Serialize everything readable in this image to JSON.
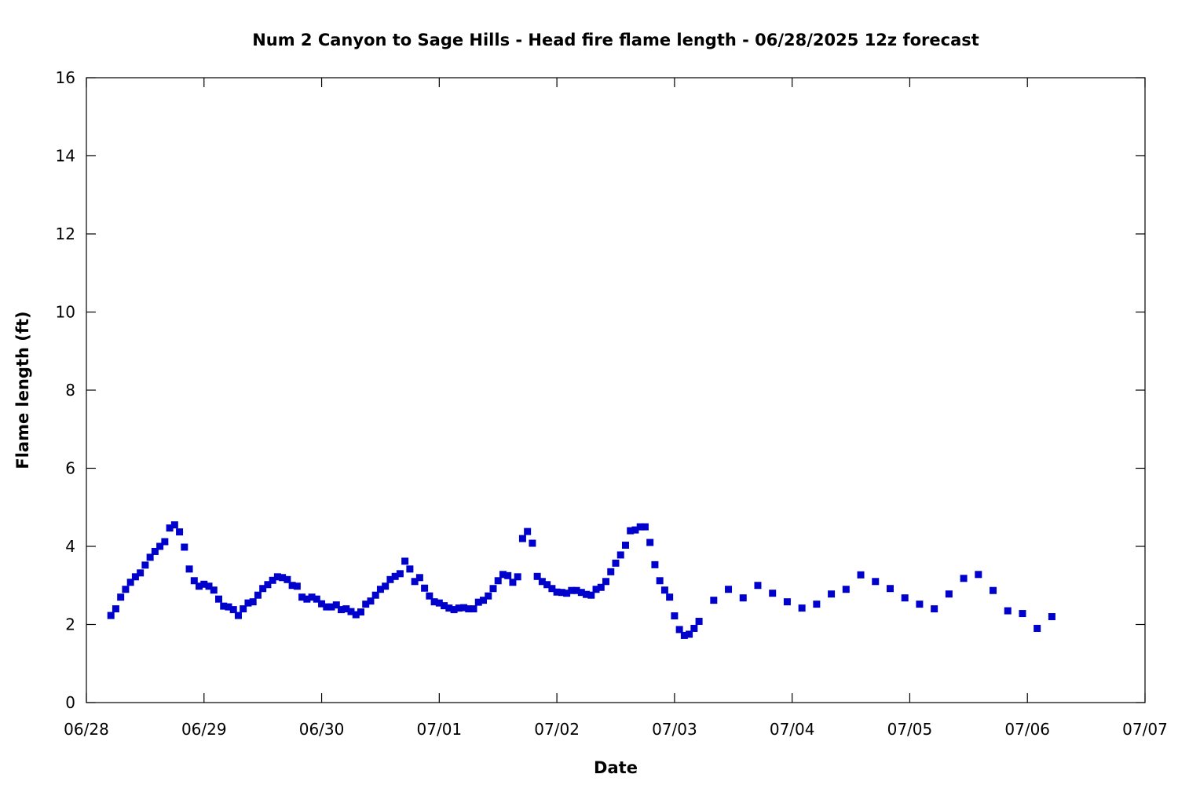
{
  "chart_data": {
    "type": "scatter",
    "title": "Num 2 Canyon to Sage Hills - Head fire flame length - 06/28/2025 12z forecast",
    "xlabel": "Date",
    "ylabel": "Flame length (ft)",
    "x_ticks": [
      "06/28",
      "06/29",
      "06/30",
      "07/01",
      "07/02",
      "07/03",
      "07/04",
      "07/05",
      "07/06",
      "07/07"
    ],
    "y_ticks": [
      "0",
      "2",
      "4",
      "6",
      "8",
      "10",
      "12",
      "14",
      "16"
    ],
    "xlim": [
      "06/28 00:00",
      "07/07 00:00"
    ],
    "ylim": [
      0,
      16
    ],
    "grid": false,
    "marker_color": "#0000cc",
    "series": [
      {
        "points": [
          [
            "06/28 05:00",
            2.23
          ],
          [
            "06/28 06:00",
            2.4
          ],
          [
            "06/28 07:00",
            2.7
          ],
          [
            "06/28 08:00",
            2.9
          ],
          [
            "06/28 09:00",
            3.08
          ],
          [
            "06/28 10:00",
            3.22
          ],
          [
            "06/28 11:00",
            3.32
          ],
          [
            "06/28 12:00",
            3.52
          ],
          [
            "06/28 13:00",
            3.72
          ],
          [
            "06/28 14:00",
            3.87
          ],
          [
            "06/28 15:00",
            4.0
          ],
          [
            "06/28 16:00",
            4.12
          ],
          [
            "06/28 17:00",
            4.47
          ],
          [
            "06/28 18:00",
            4.55
          ],
          [
            "06/28 19:00",
            4.37
          ],
          [
            "06/28 20:00",
            3.98
          ],
          [
            "06/28 21:00",
            3.42
          ],
          [
            "06/28 22:00",
            3.12
          ],
          [
            "06/28 23:00",
            2.98
          ],
          [
            "06/29 00:00",
            3.03
          ],
          [
            "06/29 01:00",
            2.98
          ],
          [
            "06/29 02:00",
            2.88
          ],
          [
            "06/29 03:00",
            2.65
          ],
          [
            "06/29 04:00",
            2.47
          ],
          [
            "06/29 05:00",
            2.45
          ],
          [
            "06/29 06:00",
            2.38
          ],
          [
            "06/29 07:00",
            2.23
          ],
          [
            "06/29 08:00",
            2.4
          ],
          [
            "06/29 09:00",
            2.55
          ],
          [
            "06/29 10:00",
            2.58
          ],
          [
            "06/29 11:00",
            2.75
          ],
          [
            "06/29 12:00",
            2.92
          ],
          [
            "06/29 13:00",
            3.02
          ],
          [
            "06/29 14:00",
            3.13
          ],
          [
            "06/29 15:00",
            3.22
          ],
          [
            "06/29 16:00",
            3.2
          ],
          [
            "06/29 17:00",
            3.15
          ],
          [
            "06/29 18:00",
            3.0
          ],
          [
            "06/29 19:00",
            2.98
          ],
          [
            "06/29 20:00",
            2.7
          ],
          [
            "06/29 21:00",
            2.65
          ],
          [
            "06/29 22:00",
            2.7
          ],
          [
            "06/29 23:00",
            2.65
          ],
          [
            "06/30 00:00",
            2.53
          ],
          [
            "06/30 01:00",
            2.45
          ],
          [
            "06/30 02:00",
            2.45
          ],
          [
            "06/30 03:00",
            2.5
          ],
          [
            "06/30 04:00",
            2.38
          ],
          [
            "06/30 05:00",
            2.4
          ],
          [
            "06/30 06:00",
            2.33
          ],
          [
            "06/30 07:00",
            2.25
          ],
          [
            "06/30 08:00",
            2.32
          ],
          [
            "06/30 09:00",
            2.52
          ],
          [
            "06/30 10:00",
            2.6
          ],
          [
            "06/30 11:00",
            2.75
          ],
          [
            "06/30 12:00",
            2.9
          ],
          [
            "06/30 13:00",
            2.98
          ],
          [
            "06/30 14:00",
            3.15
          ],
          [
            "06/30 15:00",
            3.23
          ],
          [
            "06/30 16:00",
            3.3
          ],
          [
            "06/30 17:00",
            3.62
          ],
          [
            "06/30 18:00",
            3.42
          ],
          [
            "06/30 19:00",
            3.1
          ],
          [
            "06/30 20:00",
            3.2
          ],
          [
            "06/30 21:00",
            2.93
          ],
          [
            "06/30 22:00",
            2.73
          ],
          [
            "06/30 23:00",
            2.58
          ],
          [
            "07/01 00:00",
            2.55
          ],
          [
            "07/01 01:00",
            2.48
          ],
          [
            "07/01 02:00",
            2.42
          ],
          [
            "07/01 03:00",
            2.38
          ],
          [
            "07/01 04:00",
            2.42
          ],
          [
            "07/01 05:00",
            2.43
          ],
          [
            "07/01 06:00",
            2.4
          ],
          [
            "07/01 07:00",
            2.4
          ],
          [
            "07/01 08:00",
            2.57
          ],
          [
            "07/01 09:00",
            2.62
          ],
          [
            "07/01 10:00",
            2.73
          ],
          [
            "07/01 11:00",
            2.92
          ],
          [
            "07/01 12:00",
            3.12
          ],
          [
            "07/01 13:00",
            3.28
          ],
          [
            "07/01 14:00",
            3.25
          ],
          [
            "07/01 15:00",
            3.08
          ],
          [
            "07/01 16:00",
            3.22
          ],
          [
            "07/01 17:00",
            4.2
          ],
          [
            "07/01 18:00",
            4.38
          ],
          [
            "07/01 19:00",
            4.08
          ],
          [
            "07/01 20:00",
            3.23
          ],
          [
            "07/01 21:00",
            3.1
          ],
          [
            "07/01 22:00",
            3.02
          ],
          [
            "07/01 23:00",
            2.92
          ],
          [
            "07/02 00:00",
            2.83
          ],
          [
            "07/02 01:00",
            2.82
          ],
          [
            "07/02 02:00",
            2.8
          ],
          [
            "07/02 03:00",
            2.87
          ],
          [
            "07/02 04:00",
            2.87
          ],
          [
            "07/02 05:00",
            2.82
          ],
          [
            "07/02 06:00",
            2.77
          ],
          [
            "07/02 07:00",
            2.75
          ],
          [
            "07/02 08:00",
            2.9
          ],
          [
            "07/02 09:00",
            2.95
          ],
          [
            "07/02 10:00",
            3.1
          ],
          [
            "07/02 11:00",
            3.35
          ],
          [
            "07/02 12:00",
            3.57
          ],
          [
            "07/02 13:00",
            3.78
          ],
          [
            "07/02 14:00",
            4.03
          ],
          [
            "07/02 15:00",
            4.4
          ],
          [
            "07/02 16:00",
            4.42
          ],
          [
            "07/02 17:00",
            4.5
          ],
          [
            "07/02 18:00",
            4.5
          ],
          [
            "07/02 19:00",
            4.1
          ],
          [
            "07/02 20:00",
            3.53
          ],
          [
            "07/02 21:00",
            3.12
          ],
          [
            "07/02 22:00",
            2.88
          ],
          [
            "07/02 23:00",
            2.7
          ],
          [
            "07/03 00:00",
            2.22
          ],
          [
            "07/03 01:00",
            1.87
          ],
          [
            "07/03 02:00",
            1.72
          ],
          [
            "07/03 03:00",
            1.75
          ],
          [
            "07/03 04:00",
            1.9
          ],
          [
            "07/03 05:00",
            2.08
          ],
          [
            "07/03 08:00",
            2.62
          ],
          [
            "07/03 11:00",
            2.9
          ],
          [
            "07/03 14:00",
            2.68
          ],
          [
            "07/03 17:00",
            3.0
          ],
          [
            "07/03 20:00",
            2.8
          ],
          [
            "07/03 23:00",
            2.58
          ],
          [
            "07/04 02:00",
            2.42
          ],
          [
            "07/04 05:00",
            2.52
          ],
          [
            "07/04 08:00",
            2.78
          ],
          [
            "07/04 11:00",
            2.9
          ],
          [
            "07/04 14:00",
            3.27
          ],
          [
            "07/04 17:00",
            3.1
          ],
          [
            "07/04 20:00",
            2.92
          ],
          [
            "07/04 23:00",
            2.68
          ],
          [
            "07/05 02:00",
            2.52
          ],
          [
            "07/05 05:00",
            2.4
          ],
          [
            "07/05 08:00",
            2.78
          ],
          [
            "07/05 11:00",
            3.18
          ],
          [
            "07/05 14:00",
            3.28
          ],
          [
            "07/05 17:00",
            2.87
          ],
          [
            "07/05 20:00",
            2.35
          ],
          [
            "07/05 23:00",
            2.28
          ],
          [
            "07/06 02:00",
            1.9
          ],
          [
            "07/06 05:00",
            2.2
          ]
        ]
      }
    ]
  }
}
